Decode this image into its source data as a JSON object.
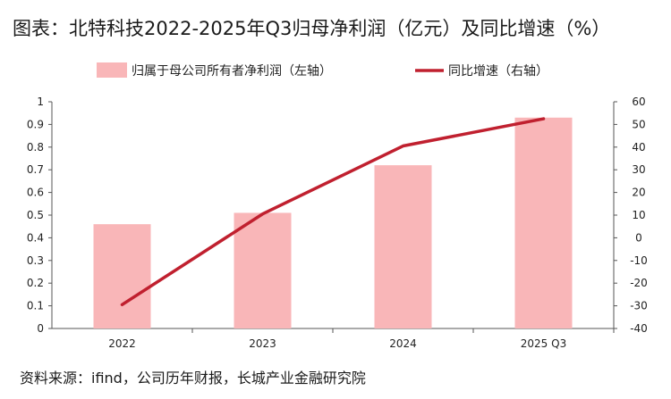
{
  "title": "图表：北特科技2022-2025年Q3归母净利润（亿元）及同比增速（%）",
  "source": "资料来源：ifind，公司历年财报，长城产业金融研究院",
  "colors": {
    "bar": "#f9b6b8",
    "line": "#c0202f",
    "axis": "#555555"
  },
  "chart_data": {
    "type": "bar",
    "categories": [
      "2022",
      "2023",
      "2024",
      "2025 Q3"
    ],
    "series": [
      {
        "name": "归属于母公司所有者净利润（左轴）",
        "type": "bar",
        "axis": "left",
        "values": [
          0.46,
          0.51,
          0.72,
          0.93
        ]
      },
      {
        "name": "同比增速（右轴）",
        "type": "line",
        "axis": "right",
        "values": [
          -29.5,
          10.5,
          40.5,
          52.5
        ]
      }
    ],
    "y_left": {
      "ylim": [
        0,
        1
      ],
      "ticks": [
        "0",
        "0.1",
        "0.2",
        "0.3",
        "0.4",
        "0.5",
        "0.6",
        "0.7",
        "0.8",
        "0.9",
        "1"
      ]
    },
    "y_right": {
      "ylim": [
        -40,
        60
      ],
      "ticks": [
        "-40",
        "-30",
        "-20",
        "-10",
        "0",
        "10",
        "20",
        "30",
        "40",
        "50",
        "60"
      ]
    },
    "legend_position": "top",
    "grid": false
  }
}
